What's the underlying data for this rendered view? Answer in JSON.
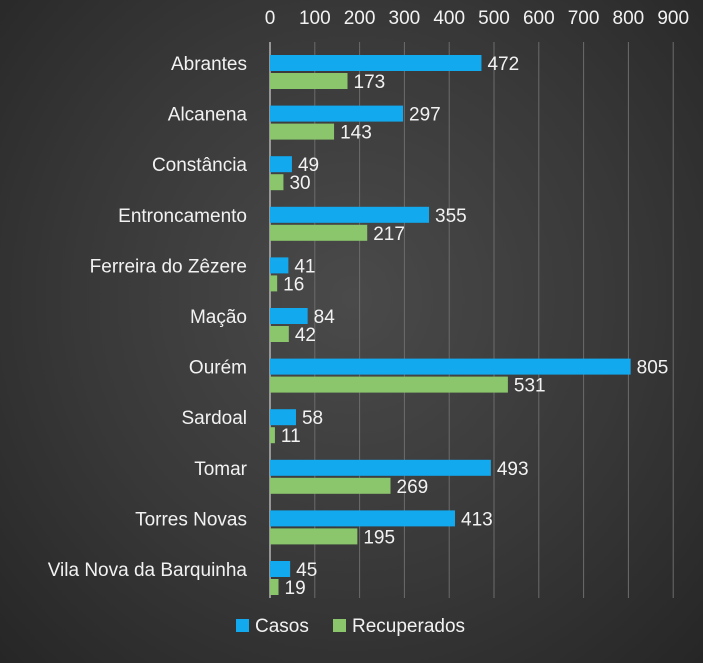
{
  "chart_data": {
    "type": "bar",
    "orientation": "horizontal",
    "categories": [
      "Abrantes",
      "Alcanena",
      "Constância",
      "Entroncamento",
      "Ferreira do Zêzere",
      "Mação",
      "Ourém",
      "Sardoal",
      "Tomar",
      "Torres Novas",
      "Vila Nova da Barquinha"
    ],
    "series": [
      {
        "name": "Casos",
        "color": "#12a9ef",
        "values": [
          472,
          297,
          49,
          355,
          41,
          84,
          805,
          58,
          493,
          413,
          45
        ]
      },
      {
        "name": "Recuperados",
        "color": "#8bc66c",
        "values": [
          173,
          143,
          30,
          217,
          16,
          42,
          531,
          11,
          269,
          195,
          19
        ]
      }
    ],
    "xlim": [
      0,
      900
    ],
    "x_ticks": [
      0,
      100,
      200,
      300,
      400,
      500,
      600,
      700,
      800,
      900
    ],
    "x_axis_position": "top",
    "grid": "vertical",
    "legend": "bottom",
    "data_labels": true
  }
}
